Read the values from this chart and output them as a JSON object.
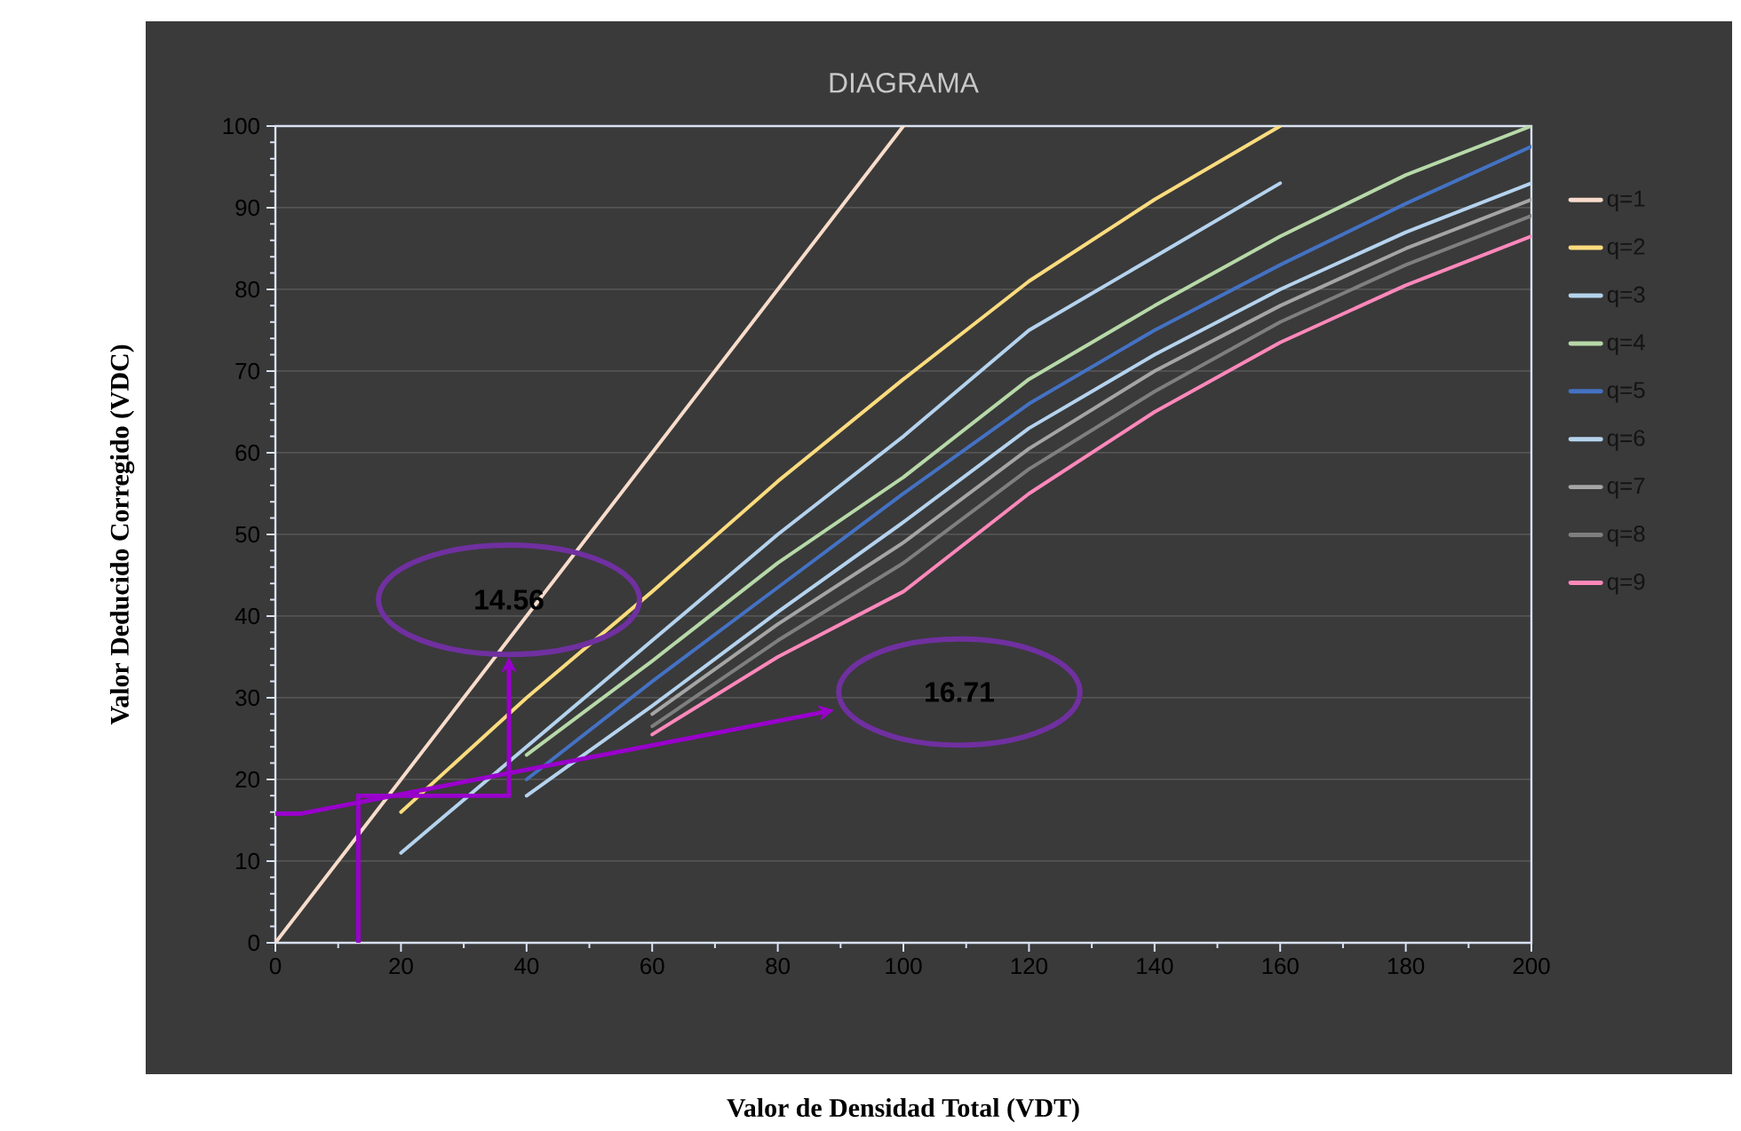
{
  "chart_data": {
    "type": "line",
    "title": "DIAGRAMA",
    "xlabel": "Valor de Densidad Total (VDT)",
    "ylabel": "Valor Deducido Corregido (VDC)",
    "xlim": [
      0,
      200
    ],
    "ylim": [
      0,
      100
    ],
    "xticks": [
      0,
      20,
      40,
      60,
      80,
      100,
      120,
      140,
      160,
      180,
      200
    ],
    "yticks": [
      0,
      10,
      20,
      30,
      40,
      50,
      60,
      70,
      80,
      90,
      100
    ],
    "grid": "y",
    "legend": "right",
    "marker": "none",
    "line_style": "solid",
    "annotations": [
      "14.56",
      "16.71"
    ],
    "series": [
      {
        "name": "q=1",
        "color": "#f8dccb",
        "x": [
          0,
          100
        ],
        "values": [
          0,
          100
        ]
      },
      {
        "name": "q=2",
        "color": "#fddc7e",
        "x": [
          20,
          40,
          60,
          80,
          100,
          120,
          140,
          160
        ],
        "values": [
          16,
          30,
          43,
          56.5,
          69,
          81,
          91,
          100
        ]
      },
      {
        "name": "q=3",
        "color": "#b5d3ee",
        "x": [
          20,
          40,
          60,
          80,
          100,
          120,
          140,
          160
        ],
        "values": [
          11,
          24,
          37,
          50,
          62,
          75,
          84,
          93
        ]
      },
      {
        "name": "q=4",
        "color": "#b7d9a8",
        "x": [
          40,
          60,
          80,
          100,
          120,
          140,
          160,
          180,
          200
        ],
        "values": [
          23,
          34.5,
          46.5,
          57,
          69,
          78,
          86.5,
          94,
          100
        ]
      },
      {
        "name": "q=5",
        "color": "#4472c4",
        "x": [
          40,
          60,
          80,
          100,
          120,
          140,
          160,
          180,
          200
        ],
        "values": [
          20,
          32,
          43.5,
          55,
          66,
          75,
          83,
          90.5,
          97.5
        ]
      },
      {
        "name": "q=6",
        "color": "#b5d3ee",
        "x": [
          40,
          60,
          80,
          100,
          120,
          140,
          160,
          180,
          200
        ],
        "values": [
          18,
          29,
          40.5,
          51.5,
          63,
          72,
          80,
          87,
          93
        ]
      },
      {
        "name": "q=7",
        "color": "#a5a5a5",
        "x": [
          60,
          80,
          100,
          120,
          140,
          160,
          180,
          200
        ],
        "values": [
          28,
          39,
          49,
          60.5,
          70,
          78,
          85,
          91
        ]
      },
      {
        "name": "q=8",
        "color": "#7f7f7f",
        "x": [
          60,
          80,
          100,
          120,
          140,
          160,
          180,
          200
        ],
        "values": [
          26.5,
          37,
          46.5,
          58,
          67.5,
          76,
          83,
          89
        ]
      },
      {
        "name": "q=9",
        "color": "#ff88bb",
        "x": [
          60,
          80,
          100,
          120,
          140,
          160,
          180,
          200
        ],
        "values": [
          25.5,
          35,
          43,
          55,
          65,
          73.5,
          80.5,
          86.5
        ]
      }
    ]
  }
}
